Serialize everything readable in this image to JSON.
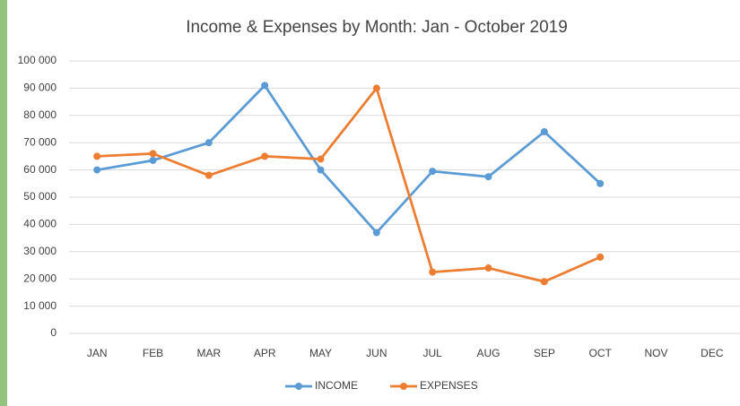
{
  "chart_data": {
    "type": "line",
    "title": "Income & Expenses by Month: Jan - October 2019",
    "categories": [
      "JAN",
      "FEB",
      "MAR",
      "APR",
      "MAY",
      "JUN",
      "JUL",
      "AUG",
      "SEP",
      "OCT",
      "NOV",
      "DEC"
    ],
    "series": [
      {
        "name": "INCOME",
        "color": "#5b9bd5",
        "values": [
          60000,
          63500,
          70000,
          91000,
          60000,
          37000,
          59500,
          57500,
          74000,
          55000,
          null,
          null
        ]
      },
      {
        "name": "EXPENSES",
        "color": "#ed7d31",
        "values": [
          65000,
          66000,
          58000,
          65000,
          64000,
          90000,
          22500,
          24000,
          19000,
          28000,
          null,
          null
        ]
      }
    ],
    "ylim": [
      0,
      100000
    ],
    "yticks": [
      0,
      {
        "value": 10000,
        "label": "10 000"
      },
      {
        "value": 20000,
        "label": "20 000"
      },
      {
        "value": 30000,
        "label": "30 000"
      },
      {
        "value": 40000,
        "label": "40 000"
      },
      {
        "value": 50000,
        "label": "50 000"
      },
      {
        "value": 60000,
        "label": "60 000"
      },
      {
        "value": 70000,
        "label": "70 000"
      },
      {
        "value": 80000,
        "label": "80 000"
      },
      {
        "value": 90000,
        "label": "90 000"
      },
      {
        "value": 100000,
        "label": "100 000"
      }
    ],
    "grid": true,
    "legend": "bottom"
  }
}
